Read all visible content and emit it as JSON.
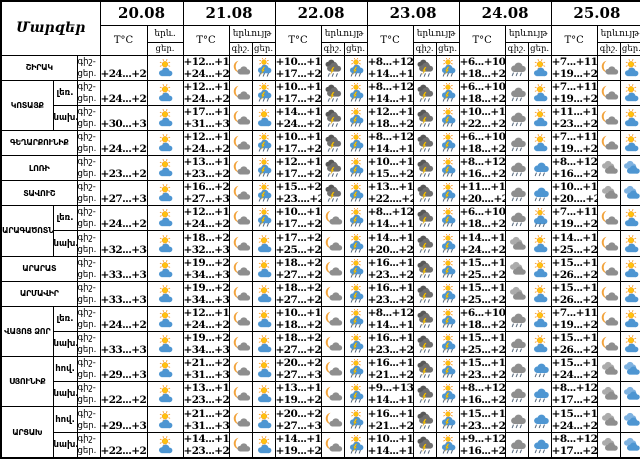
{
  "header": {
    "regions_label": "Մարզեր",
    "temp_label": "T°C",
    "phenomenon_label": "երևույթ",
    "phenomenon_short": "երև.",
    "night_label": "գիշ.",
    "day_label": "ցեր.",
    "row_night_label": "գիշ-",
    "row_day_label": "ցեր."
  },
  "icon_colors": {
    "sun": "#FFC20E",
    "sun_ray": "#F7941D",
    "moon": "#F2A33C",
    "bolt": "#FFD200",
    "bolt_edge": "#C98A00",
    "rain": "#53657A",
    "cloud_day": "#4E96D2",
    "cloud_day_light": "#7FB2E0",
    "cloud_night": "#8E8E8E",
    "cloud_night_light": "#ABABAB",
    "cloud_dark": "#707070",
    "cloud_darker": "#585858",
    "border": "#000000",
    "background": "#FFFFFF"
  },
  "chart_data": {
    "type": "table",
    "dates": [
      "20.08",
      "21.08",
      "22.08",
      "23.08",
      "24.08",
      "25.08"
    ],
    "regions": [
      {
        "name": "ՇԻՐԱԿ",
        "zones": [
          {
            "zone": null,
            "days": [
              [
                "+24...+29",
                "partly-cloudy-day"
              ],
              [
                "+12...+16",
                "+24...+28",
                "partly-cloudy-night",
                "thunderstorm-day"
              ],
              [
                "+10...+15",
                "+17...+22",
                "thunderstorm-night",
                "thunderstorm-day"
              ],
              [
                "+8...+12",
                "+14...+18",
                "thunderstorm-night",
                "thunderstorm-day"
              ],
              [
                "+6...+10",
                "+18...+23",
                "rain-night",
                "partly-cloudy-day"
              ],
              [
                "+7...+11",
                "+19...+24",
                "partly-cloudy-night",
                "partly-cloudy-day"
              ]
            ]
          }
        ]
      },
      {
        "name": "ԿՈՏԱՅՔ",
        "zones": [
          {
            "zone": "լեռ.",
            "days": [
              [
                "+24...+29",
                "partly-cloudy-day"
              ],
              [
                "+12...+16",
                "+24...+28",
                "partly-cloudy-night",
                "thunderstorm-day"
              ],
              [
                "+10...+15",
                "+17...+22",
                "thunderstorm-night",
                "thunderstorm-day"
              ],
              [
                "+8...+12",
                "+14...+18",
                "thunderstorm-night",
                "thunderstorm-day"
              ],
              [
                "+6...+10",
                "+18...+23",
                "rain-night",
                "partly-cloudy-day"
              ],
              [
                "+7...+11",
                "+19...+24",
                "partly-cloudy-night",
                "partly-cloudy-day"
              ]
            ]
          },
          {
            "zone": "նախ.",
            "days": [
              [
                "+30...+32",
                "partly-cloudy-day"
              ],
              [
                "+17...+19",
                "+31...+33",
                "partly-cloudy-night",
                "partly-cloudy-day"
              ],
              [
                "+14...+17",
                "+24...+26",
                "thunderstorm-night",
                "thunderstorm-day"
              ],
              [
                "+12...+15",
                "+18...+20",
                "thunderstorm-night",
                "thunderstorm-day"
              ],
              [
                "+10...+13",
                "+22...+24",
                "rain-night",
                "partly-cloudy-day"
              ],
              [
                "+11...+14",
                "+23...+25",
                "partly-cloudy-night",
                "partly-cloudy-day"
              ]
            ]
          }
        ]
      },
      {
        "name": "ԳԵՂԱՐՔՈՒՆԻՔ",
        "zones": [
          {
            "zone": null,
            "days": [
              [
                "+24...+29",
                "partly-cloudy-day"
              ],
              [
                "+12...+16",
                "+24...+28",
                "partly-cloudy-night",
                "thunderstorm-day"
              ],
              [
                "+10...+15",
                "+17...+22",
                "thunderstorm-night",
                "thunderstorm-day"
              ],
              [
                "+8...+12",
                "+14...+18",
                "thunderstorm-night",
                "thunderstorm-day"
              ],
              [
                "+6...+10",
                "+18...+23",
                "rain-night",
                "partly-cloudy-day"
              ],
              [
                "+7...+11",
                "+19...+24",
                "partly-cloudy-night",
                "partly-cloudy-day"
              ]
            ]
          }
        ]
      },
      {
        "name": "ԼՈՌԻ",
        "zones": [
          {
            "zone": null,
            "days": [
              [
                "+23...+26",
                "partly-cloudy-day"
              ],
              [
                "+13...+17",
                "+23...+26",
                "partly-cloudy-night",
                "thunderstorm-day"
              ],
              [
                "+12...+16",
                "+17...+21",
                "thunderstorm-night",
                "thunderstorm-day"
              ],
              [
                "+10...+14",
                "+15...+20",
                "thunderstorm-night",
                "thunderstorm-day"
              ],
              [
                "+8...+12",
                "+16...+22",
                "rain-night",
                "rain-day"
              ],
              [
                "+8...+12",
                "+16...+22",
                "cloudy-night",
                "cloudy-day"
              ]
            ]
          }
        ]
      },
      {
        "name": "ՏԱՎՈՒՇ",
        "zones": [
          {
            "zone": null,
            "days": [
              [
                "+27...+32",
                "partly-cloudy-day"
              ],
              [
                "+16...+21",
                "+27...+32",
                "partly-cloudy-night",
                "thunderstorm-day"
              ],
              [
                "+15...+20",
                "+23....+27",
                "thunderstorm-night",
                "thunderstorm-day"
              ],
              [
                "+13...+18",
                "+22....+26",
                "thunderstorm-night",
                "thunderstorm-day"
              ],
              [
                "+11...+15",
                "+20....+25",
                "rain-night",
                "rain-day"
              ],
              [
                "+10...+15",
                "+20....+25",
                "cloudy-night",
                "cloudy-day"
              ]
            ]
          }
        ]
      },
      {
        "name": "ԱՐԱԳԱԾՈՏՆ",
        "zones": [
          {
            "zone": "լեռ.",
            "days": [
              [
                "+24...+29",
                "partly-cloudy-day"
              ],
              [
                "+12...+16",
                "+24...+28",
                "partly-cloudy-night",
                "thunderstorm-day"
              ],
              [
                "+10...+15",
                "+17...+22",
                "partly-cloudy-night",
                "thunderstorm-day"
              ],
              [
                "+8...+12",
                "+14...+18",
                "thunderstorm-night",
                "thunderstorm-day"
              ],
              [
                "+6...+10",
                "+18...+23",
                "rain-night",
                "sun-rain-day"
              ],
              [
                "+7...+11",
                "+19...+24",
                "partly-cloudy-night",
                "partly-cloudy-day"
              ]
            ]
          },
          {
            "zone": "նախ.",
            "days": [
              [
                "+32...+34",
                "partly-cloudy-day"
              ],
              [
                "+18...+21",
                "+32...+35",
                "partly-cloudy-night",
                "partly-cloudy-day"
              ],
              [
                "+17...+20",
                "+25...+28",
                "partly-cloudy-night",
                "thunderstorm-day"
              ],
              [
                "+14...+17",
                "+20...+23",
                "thunderstorm-night",
                "thunderstorm-day"
              ],
              [
                "+14...+17",
                "+24...+27",
                "cloudy-night",
                "partly-cloudy-day"
              ],
              [
                "+14...+18",
                "+25...+28",
                "partly-cloudy-night",
                "partly-cloudy-day"
              ]
            ]
          }
        ]
      },
      {
        "name": "ԱՐԱՐԱՏ",
        "zones": [
          {
            "zone": null,
            "days": [
              [
                "+33...+35",
                "partly-cloudy-day"
              ],
              [
                "+19...+22",
                "+34...+36",
                "partly-cloudy-night",
                "partly-cloudy-day"
              ],
              [
                "+18...+21",
                "+27...+29",
                "partly-cloudy-night",
                "thunderstorm-day"
              ],
              [
                "+16...+19",
                "+23...+25",
                "thunderstorm-night",
                "thunderstorm-day"
              ],
              [
                "+15...+18",
                "+25...+28",
                "cloudy-night",
                "partly-cloudy-day"
              ],
              [
                "+15...+18",
                "+26...+29",
                "partly-cloudy-night",
                "partly-cloudy-day"
              ]
            ]
          }
        ]
      },
      {
        "name": "ԱՐՄԱՎԻՐ",
        "zones": [
          {
            "zone": null,
            "days": [
              [
                "+33...+35",
                "partly-cloudy-day"
              ],
              [
                "+19...+22",
                "+34...+36",
                "partly-cloudy-night",
                "partly-cloudy-day"
              ],
              [
                "+18...+21",
                "+27...+29",
                "partly-cloudy-night",
                "thunderstorm-day"
              ],
              [
                "+16...+19",
                "+23...+25",
                "thunderstorm-night",
                "thunderstorm-day"
              ],
              [
                "+15...+18",
                "+25...+28",
                "cloudy-night",
                "partly-cloudy-day"
              ],
              [
                "+15...+18",
                "+26...+29",
                "partly-cloudy-night",
                "partly-cloudy-day"
              ]
            ]
          }
        ]
      },
      {
        "name": "ՎԱՅՈՑ ՁՈՐ",
        "zones": [
          {
            "zone": "լեռ.",
            "days": [
              [
                "+24...+29",
                "partly-cloudy-day"
              ],
              [
                "+12...+16",
                "+24...+28",
                "partly-cloudy-night",
                "partly-cloudy-day"
              ],
              [
                "+10...+15",
                "+18...+22",
                "partly-cloudy-night",
                "thunderstorm-day"
              ],
              [
                "+8...+12",
                "+14...+18",
                "thunderstorm-night",
                "thunderstorm-day"
              ],
              [
                "+6...+10",
                "+18...+23",
                "rain-night",
                "partly-cloudy-day"
              ],
              [
                "+7...+11",
                "+19...+24",
                "partly-cloudy-night",
                "partly-cloudy-day"
              ]
            ]
          },
          {
            "zone": "նախ.",
            "days": [
              [
                "+33...+35",
                "partly-cloudy-day"
              ],
              [
                "+19...+22",
                "+34...+36",
                "partly-cloudy-night",
                "partly-cloudy-day"
              ],
              [
                "+18...+21",
                "+27...+29",
                "partly-cloudy-night",
                "thunderstorm-day"
              ],
              [
                "+16...+19",
                "+23...+25",
                "thunderstorm-night",
                "thunderstorm-day"
              ],
              [
                "+15...+18",
                "+25...+28",
                "rain-night",
                "partly-cloudy-day"
              ],
              [
                "+15...+18",
                "+26...+29",
                "partly-cloudy-night",
                "partly-cloudy-day"
              ]
            ]
          }
        ]
      },
      {
        "name": "ՍՅՈՒՆԻՔ",
        "zones": [
          {
            "zone": "հով.",
            "days": [
              [
                "+29...+33",
                "partly-cloudy-day"
              ],
              [
                "+21...+23",
                "+31...+34",
                "partly-cloudy-night",
                "partly-cloudy-day"
              ],
              [
                "+20...+23",
                "+27...+30",
                "partly-cloudy-night",
                "thunderstorm-day"
              ],
              [
                "+16...+19",
                "+21...+24",
                "thunderstorm-night",
                "thunderstorm-day"
              ],
              [
                "+15...+18",
                "+23...+27",
                "rain-night",
                "rain-day"
              ],
              [
                "+15...+18",
                "+24...+28",
                "cloudy-night",
                "cloudy-day"
              ]
            ]
          },
          {
            "zone": "նախ.",
            "days": [
              [
                "+22...+25",
                "partly-cloudy-day"
              ],
              [
                "+13...+16",
                "+23...+26",
                "partly-cloudy-night",
                "partly-cloudy-day"
              ],
              [
                "+13...+16",
                "+19...+23",
                "partly-cloudy-night",
                "thunderstorm-day"
              ],
              [
                "+9...+13",
                "+14...+18",
                "thunderstorm-night",
                "thunderstorm-day"
              ],
              [
                "+8...+12",
                "+16...+20",
                "rain-night",
                "rain-day"
              ],
              [
                "+8...+12",
                "+17...+21",
                "cloudy-night",
                "cloudy-day"
              ]
            ]
          }
        ]
      },
      {
        "name": "ԱՐՑԱԽ",
        "zones": [
          {
            "zone": "հով.",
            "days": [
              [
                "+29...+33",
                "partly-cloudy-day"
              ],
              [
                "+21...+23",
                "+31...+34",
                "partly-cloudy-night",
                "partly-cloudy-day"
              ],
              [
                "+20...+23",
                "+27...+30",
                "partly-cloudy-night",
                "thunderstorm-day"
              ],
              [
                "+16...+19",
                "+21...+24",
                "thunderstorm-night",
                "thunderstorm-day"
              ],
              [
                "+15...+18",
                "+23...+27",
                "rain-night",
                "rain-day"
              ],
              [
                "+15...+18",
                "+24...+28",
                "cloudy-night",
                "cloudy-day"
              ]
            ]
          },
          {
            "zone": "նախ.",
            "days": [
              [
                "+22...+25",
                "partly-cloudy-day"
              ],
              [
                "+14...+16",
                "+23...+26",
                "partly-cloudy-night",
                "partly-cloudy-day"
              ],
              [
                "+14...+16",
                "+19...+23",
                "partly-cloudy-night",
                "thunderstorm-day"
              ],
              [
                "+10...+13",
                "+14...+18",
                "thunderstorm-night",
                "thunderstorm-day"
              ],
              [
                "+9...+12",
                "+16...+20",
                "rain-night",
                "rain-day"
              ],
              [
                "+8...+12",
                "+17...+21",
                "cloudy-night",
                "cloudy-day"
              ]
            ]
          }
        ]
      }
    ]
  }
}
